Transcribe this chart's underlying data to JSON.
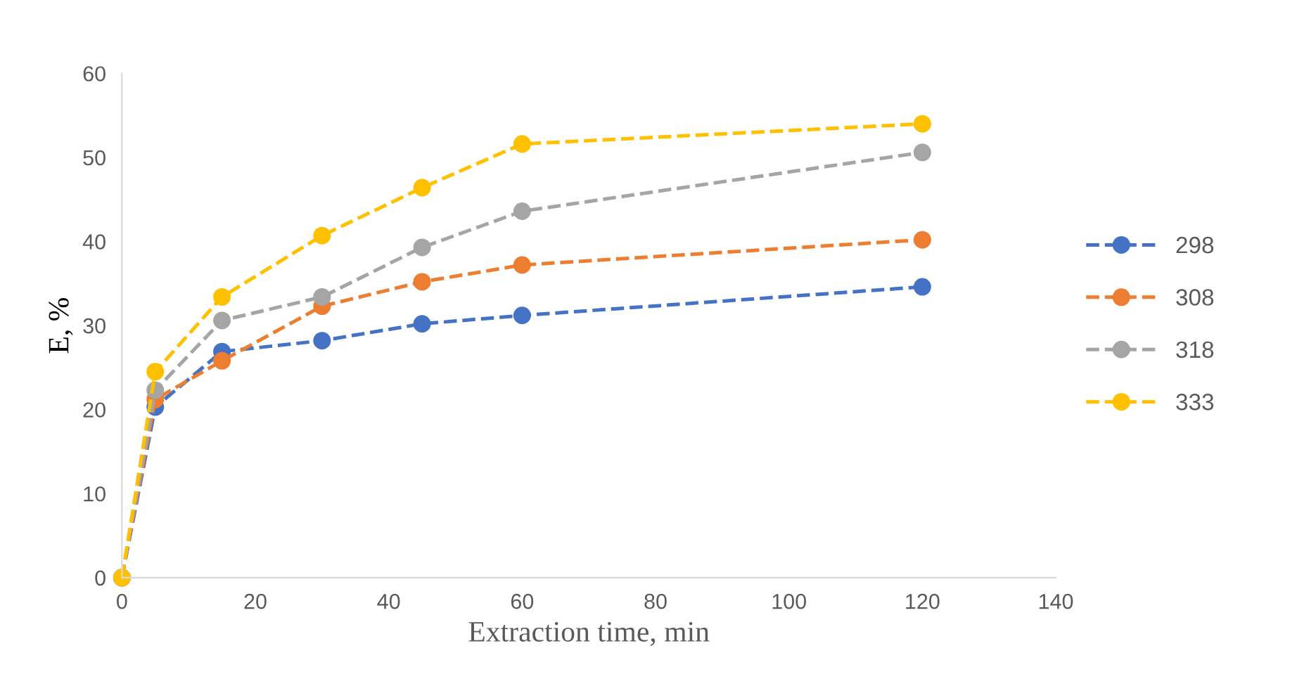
{
  "chart_data": {
    "type": "line",
    "xlabel": "Extraction time, min",
    "ylabel": "E, %",
    "x": [
      0,
      5,
      15,
      30,
      45,
      60,
      120
    ],
    "series": [
      {
        "name": "298",
        "color": "#4472c4",
        "values": [
          0,
          20.3,
          26.9,
          28.2,
          30.2,
          31.2,
          34.6
        ]
      },
      {
        "name": "308",
        "color": "#ed7d31",
        "values": [
          0,
          21.2,
          25.8,
          32.3,
          35.2,
          37.2,
          40.2
        ]
      },
      {
        "name": "318",
        "color": "#a5a5a5",
        "values": [
          0,
          22.3,
          30.6,
          33.4,
          39.3,
          43.6,
          50.6
        ]
      },
      {
        "name": "333",
        "color": "#ffc000",
        "values": [
          0,
          24.5,
          33.4,
          40.7,
          46.4,
          51.6,
          54.0
        ]
      }
    ],
    "xlim": [
      0,
      140
    ],
    "xticks": [
      0,
      20,
      40,
      60,
      80,
      100,
      120,
      140
    ],
    "ylim": [
      0,
      60
    ],
    "yticks": [
      0,
      10,
      20,
      30,
      40,
      50,
      60
    ],
    "grid": false,
    "legend": "right",
    "marker": "circle",
    "line_style": "dashed"
  }
}
